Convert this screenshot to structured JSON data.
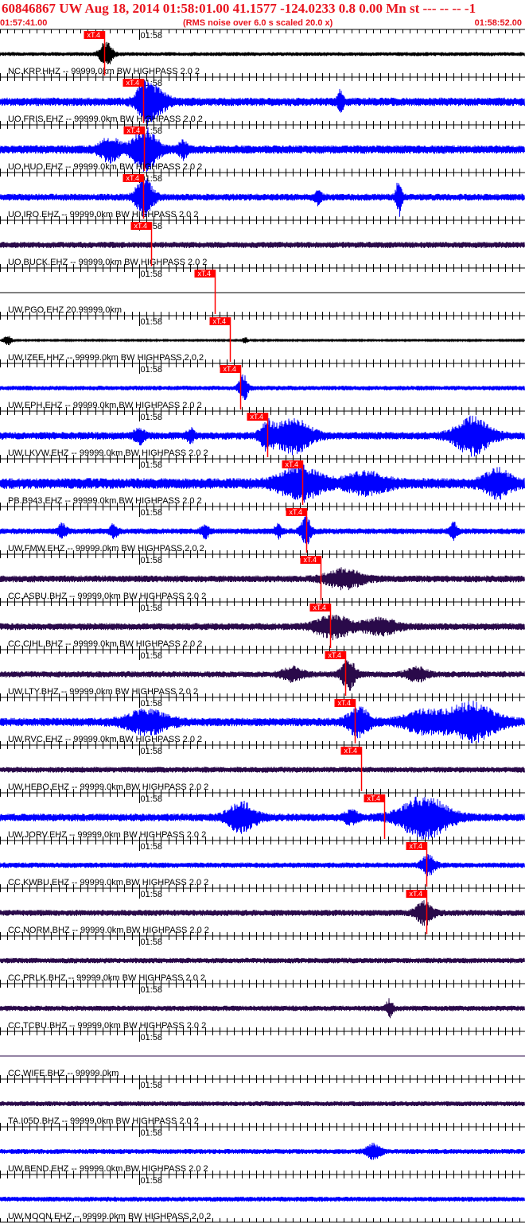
{
  "header": {
    "title": "60846867 UW Aug 18, 2014 01:58:01.00   41.1577 -124.0233  0.8 0.00 Mn st --- -- --  -1",
    "start_time": "01:57:41.00",
    "note": "(RMS noise over 6.0 s scaled 20.0 x)",
    "end_time": "01:58:52.00"
  },
  "colors": {
    "header_red": "#e8141e",
    "pick_red": "#ff0000",
    "trace_black": "#000000",
    "trace_blue": "#0000ff",
    "trace_purple": "#2a0a4a",
    "grid_line": "#000000"
  },
  "chart_data": {
    "type": "line",
    "title": "60846867 UW Aug 18, 2014 01:58:01.00   41.1577 -124.0233  0.8 0.00 Mn st --- -- --  -1",
    "x_range_seconds": [
      0,
      71
    ],
    "x_start": "01:57:41.00",
    "x_end": "01:58:52.00",
    "minute_mark_label": "01:58",
    "minute_mark_second": 19,
    "tick_interval_seconds": 1,
    "pick_label": "xT.4",
    "channels": [
      {
        "label": "NC.KRP.HHZ -- 99999.0km BW  HIGHPASS  2.0  2",
        "color": "black",
        "pick_s": 14.2,
        "noise": 0.1,
        "bursts": [
          [
            14.5,
            0.9,
            0.65
          ]
        ]
      },
      {
        "label": "UO.FRIS.EHZ -- 99999.0km BW  HIGHPASS  2.0  2",
        "color": "blue",
        "pick_s": 19.6,
        "noise": 0.22,
        "bursts": [
          [
            19.8,
            1.2,
            1.0
          ],
          [
            21.5,
            1.5,
            0.5
          ],
          [
            46.5,
            0.4,
            0.5
          ]
        ]
      },
      {
        "label": "UO.HUO.EHZ -- 99999.0km BW  HIGHPASS  2.0  2",
        "color": "blue",
        "pick_s": 19.7,
        "noise": 0.22,
        "bursts": [
          [
            15.0,
            1.5,
            0.55
          ],
          [
            19.8,
            1.8,
            1.0
          ],
          [
            25.0,
            0.6,
            0.4
          ]
        ]
      },
      {
        "label": "UO.IRO.EHZ -- 99999.0km BW  HIGHPASS  2.0  2",
        "color": "blue",
        "pick_s": 19.6,
        "noise": 0.18,
        "bursts": [
          [
            19.7,
            1.2,
            1.0
          ],
          [
            54.5,
            0.4,
            0.9
          ],
          [
            43.5,
            0.5,
            0.35
          ]
        ]
      },
      {
        "label": "UO.BUCK.EHZ -- 99999.0km BW  HIGHPASS  2.0  2",
        "color": "purple",
        "pick_s": 20.7,
        "noise": 0.16,
        "bursts": []
      },
      {
        "label": "UW.PGO.EHZ 20.99999.0km",
        "color": "black",
        "pick_s": 29.3,
        "noise": 0.0,
        "bursts": []
      },
      {
        "label": "UW.IZEE.HHZ -- 99999.0km BW  HIGHPASS  2.0  2",
        "color": "black",
        "pick_s": 31.4,
        "noise": 0.04,
        "bursts": [
          [
            1.0,
            0.6,
            0.25
          ],
          [
            33.5,
            0.4,
            0.15
          ]
        ]
      },
      {
        "label": "UW.EPH.EHZ -- 99999.0km BW  HIGHPASS  2.0  2",
        "color": "blue",
        "pick_s": 32.8,
        "noise": 0.12,
        "bursts": [
          [
            33.2,
            0.6,
            0.7
          ]
        ]
      },
      {
        "label": "UW.LKVW.EHZ -- 99999.0km BW  HIGHPASS  2.0  2",
        "color": "blue",
        "pick_s": 36.5,
        "noise": 0.2,
        "bursts": [
          [
            19.0,
            0.7,
            0.35
          ],
          [
            36.5,
            1.0,
            0.6
          ],
          [
            40.0,
            2.5,
            0.85
          ],
          [
            64.5,
            2.5,
            0.9
          ],
          [
            26.0,
            0.5,
            0.3
          ]
        ]
      },
      {
        "label": "PB.B943.EHZ -- 99999.0km BW  HIGHPASS  2.0  2",
        "color": "blue",
        "pick_s": 41.3,
        "noise": 0.28,
        "bursts": [
          [
            41.0,
            3.0,
            0.75
          ],
          [
            50.0,
            3.0,
            0.45
          ],
          [
            68.0,
            2.0,
            0.6
          ]
        ]
      },
      {
        "label": "UW.FMW.EHZ -- 99999.0km BW  HIGHPASS  2.0  2",
        "color": "blue",
        "pick_s": 41.9,
        "noise": 0.15,
        "bursts": [
          [
            8.5,
            0.6,
            0.35
          ],
          [
            15.5,
            0.6,
            0.3
          ],
          [
            28.0,
            0.6,
            0.3
          ],
          [
            41.8,
            0.7,
            0.7
          ],
          [
            62.0,
            0.5,
            0.4
          ],
          [
            38.0,
            0.5,
            0.3
          ]
        ]
      },
      {
        "label": "CC.ASBU.BHZ -- 99999.0km BW  HIGHPASS  2.0  2",
        "color": "purple",
        "pick_s": 43.8,
        "noise": 0.18,
        "bursts": [
          [
            47.0,
            2.5,
            0.45
          ]
        ]
      },
      {
        "label": "CC.CIHL.BHZ -- 99999.0km BW  HIGHPASS  2.0  2",
        "color": "purple",
        "pick_s": 45.1,
        "noise": 0.18,
        "bursts": [
          [
            45.5,
            2.5,
            0.55
          ],
          [
            52.0,
            2.5,
            0.35
          ]
        ]
      },
      {
        "label": "UW.LTY.BHZ -- 99999.0km BW  HIGHPASS  2.0  2",
        "color": "purple",
        "pick_s": 47.2,
        "noise": 0.16,
        "bursts": [
          [
            47.6,
            1.0,
            0.75
          ],
          [
            40.0,
            1.5,
            0.3
          ],
          [
            57.0,
            1.5,
            0.3
          ]
        ]
      },
      {
        "label": "UW.RVC.EHZ -- 99999.0km BW  HIGHPASS  2.0  2",
        "color": "blue",
        "pick_s": 48.5,
        "noise": 0.22,
        "bursts": [
          [
            20.0,
            3.0,
            0.55
          ],
          [
            49.0,
            1.5,
            0.7
          ],
          [
            58.0,
            3.0,
            0.5
          ],
          [
            64.5,
            3.5,
            0.9
          ]
        ]
      },
      {
        "label": "UW.HEBO.EHZ -- 99999.0km BW  HIGHPASS  2.0  2",
        "color": "purple",
        "pick_s": 49.3,
        "noise": 0.15,
        "bursts": []
      },
      {
        "label": "UW.JORV.EHZ -- 99999.0km BW  HIGHPASS  2.0  2",
        "color": "blue",
        "pick_s": 52.5,
        "noise": 0.2,
        "bursts": [
          [
            33.0,
            2.0,
            0.7
          ],
          [
            58.0,
            3.5,
            1.0
          ],
          [
            48.0,
            1.0,
            0.3
          ]
        ]
      },
      {
        "label": "CC.KWBU.EHZ -- 99999.0km BW  HIGHPASS  2.0  2",
        "color": "blue",
        "pick_s": 58.3,
        "noise": 0.14,
        "bursts": [
          [
            58.5,
            1.0,
            0.45
          ]
        ]
      },
      {
        "label": "CC.NORM.BHZ -- 99999.0km BW  HIGHPASS  2.0  2",
        "color": "purple",
        "pick_s": 58.3,
        "noise": 0.16,
        "bursts": [
          [
            58.0,
            1.2,
            0.55
          ]
        ]
      },
      {
        "label": "CC.PRLK.BHZ -- 99999.0km BW  HIGHPASS  2.0  2",
        "color": "purple",
        "pick_s": null,
        "noise": 0.14,
        "bursts": []
      },
      {
        "label": "CC.TCBU.BHZ -- 99999.0km BW  HIGHPASS  2.0  2",
        "color": "purple",
        "pick_s": null,
        "noise": 0.14,
        "bursts": [
          [
            53.2,
            0.5,
            0.4
          ]
        ]
      },
      {
        "label": "CC.WIFE.BHZ -- 99999.0km",
        "color": "purple",
        "pick_s": null,
        "noise": 0.0,
        "bursts": []
      },
      {
        "label": "TA.I05D.BHZ -- 99999.0km BW  HIGHPASS  2.0  2",
        "color": "purple",
        "pick_s": null,
        "noise": 0.13,
        "bursts": []
      },
      {
        "label": "UW.BEND.EHZ -- 99999.0km BW  HIGHPASS  2.0  2",
        "color": "blue",
        "pick_s": null,
        "noise": 0.13,
        "bursts": [
          [
            51.0,
            1.0,
            0.35
          ]
        ]
      },
      {
        "label": "UW.MOON.EHZ -- 99999.0km BW  HIGHPASS  2.0  2",
        "color": "blue",
        "pick_s": null,
        "noise": 0.13,
        "bursts": []
      }
    ]
  }
}
